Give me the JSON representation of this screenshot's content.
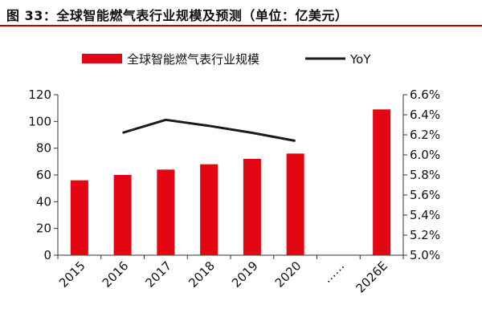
{
  "title": "图 33：全球智能燃气表行业规模及预测（单位：亿美元）",
  "colors": {
    "bar": "#e30613",
    "line": "#1a1a1a",
    "title_rule": "#c00000"
  },
  "chart_data": {
    "type": "bar",
    "categories": [
      "2015",
      "2016",
      "2017",
      "2018",
      "2019",
      "2020",
      "……",
      "2026E"
    ],
    "series": [
      {
        "name": "全球智能燃气表行业规模",
        "type": "bar",
        "axis": "left",
        "values": [
          56,
          60,
          64,
          68,
          72,
          76,
          null,
          109
        ]
      },
      {
        "name": "YoY",
        "type": "line",
        "axis": "right",
        "values": [
          null,
          0.0622,
          0.0635,
          0.0629,
          0.0622,
          0.0614,
          null,
          null
        ]
      }
    ],
    "y_left": {
      "min": 0,
      "max": 120,
      "ticks": [
        "0",
        "20",
        "40",
        "60",
        "80",
        "100",
        "120"
      ]
    },
    "y_right": {
      "min": 0.05,
      "max": 0.066,
      "ticks": [
        "5.0%",
        "5.2%",
        "5.4%",
        "5.6%",
        "5.8%",
        "6.0%",
        "6.2%",
        "6.4%",
        "6.6%"
      ]
    },
    "legend": {
      "position": "top"
    }
  }
}
